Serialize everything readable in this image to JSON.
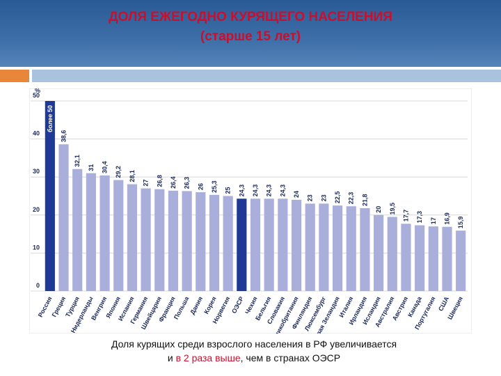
{
  "header": {
    "title": "ДОЛЯ ЕЖЕГОДНО КУРЯЩЕГО НАСЕЛЕНИЯ",
    "subtitle": "(старше 15 лет)"
  },
  "chart_data": {
    "type": "bar",
    "y_label": "%",
    "categories": [
      "Россия",
      "Греция",
      "Турция",
      "Нидерланды",
      "Венгрия",
      "Япония",
      "Испания",
      "Германия",
      "Швейцария",
      "Франция",
      "Польша",
      "Дания",
      "Корея",
      "Норвегия",
      "ОЭСР",
      "Чехия",
      "Бельгия",
      "Словакия",
      "Великобритания",
      "Финляндия",
      "Люксембург",
      "Новая Зеландия",
      "Италия",
      "Ирландия",
      "Исландия",
      "Австралия",
      "Австрия",
      "Канада",
      "Португалия",
      "США",
      "Швеция"
    ],
    "values": [
      50,
      38.6,
      32.1,
      31,
      30.4,
      29.2,
      28.1,
      27,
      26.8,
      26.4,
      26.3,
      26,
      25.3,
      25,
      24.3,
      24.3,
      24.3,
      24.3,
      24,
      23,
      23,
      22.5,
      22.3,
      21.8,
      20,
      19.5,
      17.7,
      17.3,
      17,
      16.9,
      15.9
    ],
    "value_labels": [
      "более 50",
      "38,6",
      "32,1",
      "31",
      "30,4",
      "29,2",
      "28,1",
      "27",
      "26,8",
      "26,4",
      "26,3",
      "26",
      "25,3",
      "25",
      "24,3",
      "24,3",
      "24,3",
      "24,3",
      "24",
      "23",
      "23",
      "22,5",
      "22,3",
      "21,8",
      "20",
      "19,5",
      "17,7",
      "17,3",
      "17",
      "16,9",
      "15,9"
    ],
    "colors": [
      "#1f3a96",
      "#aaaedb",
      "#aaaedb",
      "#aaaedb",
      "#aaaedb",
      "#aaaedb",
      "#aaaedb",
      "#aaaedb",
      "#aaaedb",
      "#aaaedb",
      "#aaaedb",
      "#aaaedb",
      "#aaaedb",
      "#aaaedb",
      "#1f3a96",
      "#aaaedb",
      "#aaaedb",
      "#aaaedb",
      "#aaaedb",
      "#aaaedb",
      "#aaaedb",
      "#aaaedb",
      "#aaaedb",
      "#aaaedb",
      "#aaaedb",
      "#aaaedb",
      "#aaaedb",
      "#aaaedb",
      "#aaaedb",
      "#aaaedb",
      "#aaaedb"
    ],
    "ylim": [
      0,
      50
    ],
    "yticks": [
      0,
      10,
      20,
      30,
      40,
      50
    ],
    "grid": true
  },
  "caption": {
    "line1": "Доля курящих среди взрослого населения в РФ увеличивается",
    "line2": [
      "и ",
      "в 2 раза выше",
      ", чем в странах ОЭСР"
    ]
  }
}
